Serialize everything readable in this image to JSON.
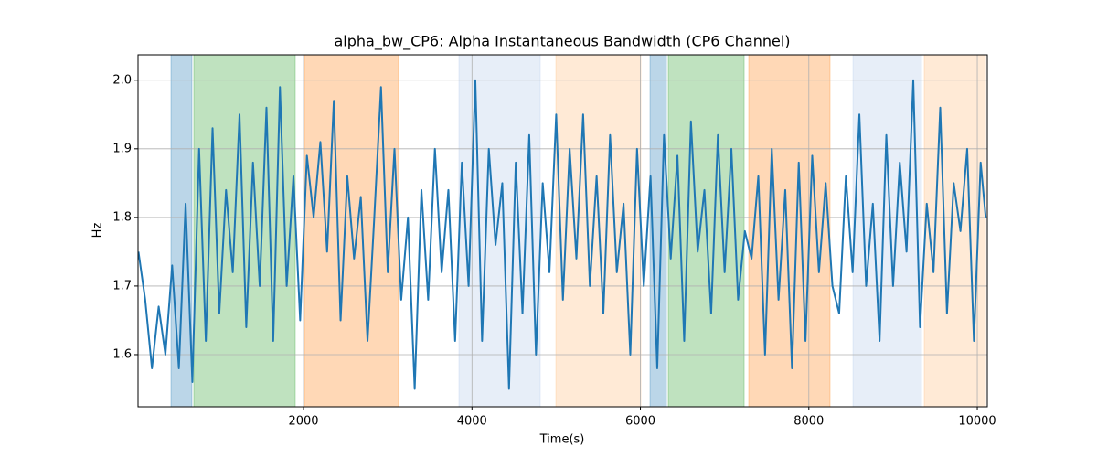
{
  "chart_data": {
    "type": "line",
    "title": "alpha_bw_CP6: Alpha Instantaneous Bandwidth (CP6 Channel)",
    "x_label": "Time(s)",
    "y_label": "Hz",
    "xlim": [
      35,
      10119
    ],
    "ylim": [
      1.524,
      2.037
    ],
    "xticks": [
      2000,
      4000,
      6000,
      8000,
      10000
    ],
    "yticks": [
      1.6,
      1.7,
      1.8,
      1.9,
      {
        "value": 2,
        "label": "2.0"
      }
    ],
    "grid": true,
    "spans": [
      {
        "start": 426,
        "end": 675,
        "color": "#1f77b4"
      },
      {
        "start": 697,
        "end": 1902,
        "color": "#2ca02c"
      },
      {
        "start": 2011,
        "end": 3129,
        "color": "#ff7f0e"
      },
      {
        "start": 3845,
        "end": 4811,
        "color": "#aec7e8"
      },
      {
        "start": 4996,
        "end": 6005,
        "color": "#ffbb78"
      },
      {
        "start": 6114,
        "end": 6309,
        "color": "#1f77b4"
      },
      {
        "start": 6331,
        "end": 7232,
        "color": "#2ca02c"
      },
      {
        "start": 7286,
        "end": 8252,
        "color": "#ff7f0e"
      },
      {
        "start": 8524,
        "end": 9338,
        "color": "#aec7e8"
      },
      {
        "start": 9370,
        "end": 10098,
        "color": "#ffbb78"
      }
    ],
    "x": [
      40,
      120,
      200,
      280,
      360,
      440,
      520,
      600,
      680,
      760,
      840,
      920,
      1000,
      1080,
      1160,
      1240,
      1320,
      1400,
      1480,
      1560,
      1640,
      1720,
      1800,
      1880,
      1960,
      2040,
      2120,
      2200,
      2280,
      2360,
      2440,
      2520,
      2600,
      2680,
      2760,
      2840,
      2920,
      3000,
      3080,
      3160,
      3240,
      3320,
      3400,
      3480,
      3560,
      3640,
      3720,
      3800,
      3880,
      3960,
      4040,
      4120,
      4200,
      4280,
      4360,
      4440,
      4520,
      4600,
      4680,
      4760,
      4840,
      4920,
      5000,
      5080,
      5160,
      5240,
      5320,
      5400,
      5480,
      5560,
      5640,
      5720,
      5800,
      5880,
      5960,
      6040,
      6120,
      6200,
      6280,
      6360,
      6440,
      6520,
      6600,
      6680,
      6760,
      6840,
      6920,
      7000,
      7080,
      7160,
      7240,
      7320,
      7400,
      7480,
      7560,
      7640,
      7720,
      7800,
      7880,
      7960,
      8040,
      8120,
      8200,
      8280,
      8360,
      8440,
      8520,
      8600,
      8680,
      8760,
      8840,
      8920,
      9000,
      9080,
      9160,
      9240,
      9320,
      9400,
      9480,
      9560,
      9640,
      9720,
      9800,
      9880,
      9960,
      10040,
      10100
    ],
    "series": [
      {
        "color": "#1f77b4",
        "values": [
          1.75,
          1.68,
          1.58,
          1.67,
          1.6,
          1.73,
          1.58,
          1.82,
          1.56,
          1.9,
          1.62,
          1.93,
          1.66,
          1.84,
          1.72,
          1.95,
          1.64,
          1.88,
          1.7,
          1.96,
          1.62,
          1.99,
          1.7,
          1.86,
          1.65,
          1.89,
          1.8,
          1.91,
          1.75,
          1.97,
          1.65,
          1.86,
          1.74,
          1.83,
          1.62,
          1.8,
          1.99,
          1.72,
          1.9,
          1.68,
          1.8,
          1.55,
          1.84,
          1.68,
          1.9,
          1.72,
          1.84,
          1.62,
          1.88,
          1.7,
          2.0,
          1.62,
          1.9,
          1.76,
          1.85,
          1.55,
          1.88,
          1.66,
          1.92,
          1.6,
          1.85,
          1.72,
          1.95,
          1.68,
          1.9,
          1.74,
          1.95,
          1.7,
          1.86,
          1.66,
          1.92,
          1.72,
          1.82,
          1.6,
          1.9,
          1.7,
          1.86,
          1.58,
          1.92,
          1.74,
          1.89,
          1.62,
          1.94,
          1.75,
          1.84,
          1.66,
          1.92,
          1.72,
          1.9,
          1.68,
          1.78,
          1.74,
          1.86,
          1.6,
          1.9,
          1.68,
          1.84,
          1.58,
          1.88,
          1.62,
          1.89,
          1.72,
          1.85,
          1.7,
          1.66,
          1.86,
          1.72,
          1.95,
          1.7,
          1.82,
          1.62,
          1.92,
          1.7,
          1.88,
          1.75,
          2.0,
          1.64,
          1.82,
          1.72,
          1.96,
          1.66,
          1.85,
          1.78,
          1.9,
          1.62,
          1.88,
          1.8
        ]
      }
    ]
  }
}
